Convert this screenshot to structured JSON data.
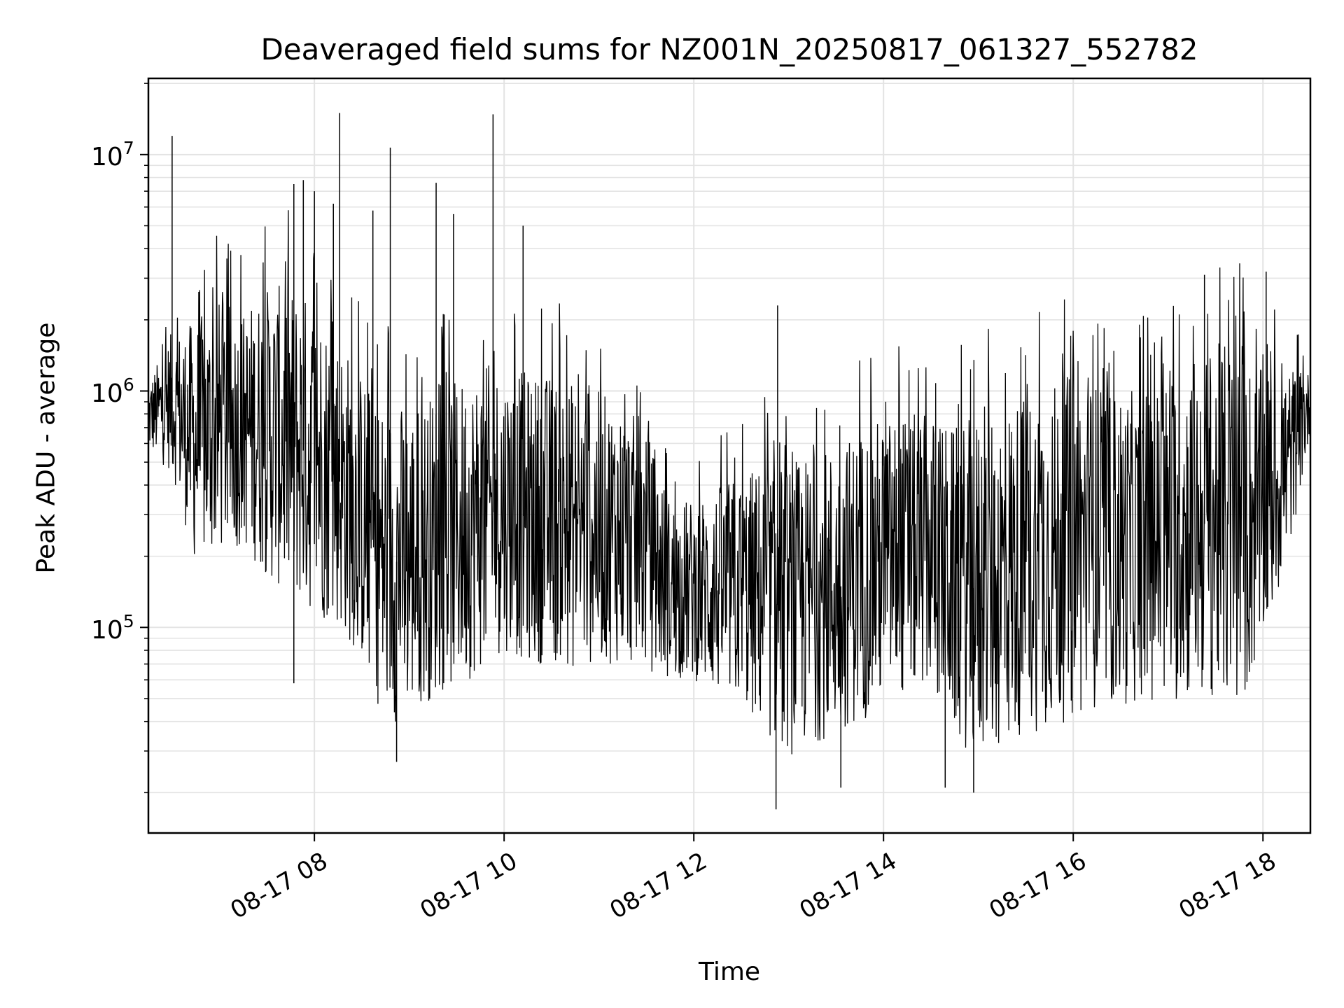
{
  "chart_data": {
    "type": "line",
    "title": "Deaveraged field sums for NZ001N_20250817_061327_552782",
    "xlabel": "Time",
    "ylabel": "Peak ADU - average",
    "yscale": "log",
    "xlim": [
      "2025-08-17 06:15",
      "2025-08-17 18:30"
    ],
    "ylim": [
      13500,
      21000000
    ],
    "grid": true,
    "series_color": "#000000",
    "x_ticks": [
      {
        "value": "2025-08-17 08:00",
        "label": "08-17 08"
      },
      {
        "value": "2025-08-17 10:00",
        "label": "08-17 10"
      },
      {
        "value": "2025-08-17 12:00",
        "label": "08-17 12"
      },
      {
        "value": "2025-08-17 14:00",
        "label": "08-17 14"
      },
      {
        "value": "2025-08-17 16:00",
        "label": "08-17 16"
      },
      {
        "value": "2025-08-17 18:00",
        "label": "08-17 18"
      }
    ],
    "y_ticks": [
      {
        "value": 100000,
        "base": "10",
        "exp": "5"
      },
      {
        "value": 1000000,
        "base": "10",
        "exp": "6"
      },
      {
        "value": 10000000,
        "base": "10",
        "exp": "7"
      }
    ],
    "series": [
      {
        "envelope": {
          "x": [
            "2025-08-17 06:15",
            "2025-08-17 06:30",
            "2025-08-17 06:45",
            "2025-08-17 07:00",
            "2025-08-17 07:15",
            "2025-08-17 07:30",
            "2025-08-17 07:45",
            "2025-08-17 08:00",
            "2025-08-17 08:15",
            "2025-08-17 08:30",
            "2025-08-17 08:45",
            "2025-08-17 09:00",
            "2025-08-17 09:15",
            "2025-08-17 09:30",
            "2025-08-17 09:45",
            "2025-08-17 10:00",
            "2025-08-17 10:15",
            "2025-08-17 10:30",
            "2025-08-17 10:45",
            "2025-08-17 11:00",
            "2025-08-17 11:15",
            "2025-08-17 11:30",
            "2025-08-17 11:45",
            "2025-08-17 12:00",
            "2025-08-17 12:15",
            "2025-08-17 12:30",
            "2025-08-17 12:45",
            "2025-08-17 13:00",
            "2025-08-17 13:15",
            "2025-08-17 13:30",
            "2025-08-17 13:45",
            "2025-08-17 14:00",
            "2025-08-17 14:15",
            "2025-08-17 14:30",
            "2025-08-17 14:45",
            "2025-08-17 15:00",
            "2025-08-17 15:15",
            "2025-08-17 15:30",
            "2025-08-17 15:45",
            "2025-08-17 16:00",
            "2025-08-17 16:15",
            "2025-08-17 16:30",
            "2025-08-17 16:45",
            "2025-08-17 17:00",
            "2025-08-17 17:15",
            "2025-08-17 17:30",
            "2025-08-17 17:45",
            "2025-08-17 18:00",
            "2025-08-17 18:15",
            "2025-08-17 18:30"
          ],
          "low": [
            550000,
            450000,
            180000,
            200000,
            220000,
            160000,
            130000,
            110000,
            100000,
            70000,
            38000,
            42000,
            50000,
            55000,
            65000,
            80000,
            70000,
            70000,
            65000,
            70000,
            70000,
            65000,
            60000,
            60000,
            50000,
            45000,
            35000,
            28000,
            32000,
            35000,
            40000,
            45000,
            50000,
            55000,
            35000,
            26000,
            30000,
            35000,
            38000,
            40000,
            45000,
            45000,
            50000,
            45000,
            50000,
            50000,
            40000,
            80000,
            180000,
            650000
          ],
          "high": [
            1100000,
            1800000,
            2000000,
            2500000,
            2200000,
            2800000,
            2800000,
            2500000,
            1800000,
            1200000,
            900000,
            900000,
            1000000,
            1100000,
            1300000,
            1300000,
            1200000,
            1200000,
            1100000,
            1000000,
            900000,
            700000,
            350000,
            350000,
            400000,
            450000,
            500000,
            500000,
            550000,
            600000,
            700000,
            800000,
            800000,
            800000,
            700000,
            800000,
            900000,
            1000000,
            1100000,
            1200000,
            1100000,
            1000000,
            1000000,
            1200000,
            1400000,
            1600000,
            1600000,
            1200000,
            1300000,
            1200000
          ]
        },
        "spikes": [
          {
            "x": "2025-08-17 06:30",
            "y": 12000000
          },
          {
            "x": "2025-08-17 07:47",
            "y": 7500000
          },
          {
            "x": "2025-08-17 07:53",
            "y": 7800000
          },
          {
            "x": "2025-08-17 08:00",
            "y": 7000000
          },
          {
            "x": "2025-08-17 08:16",
            "y": 15000000
          },
          {
            "x": "2025-08-17 08:12",
            "y": 6200000
          },
          {
            "x": "2025-08-17 08:37",
            "y": 5800000
          },
          {
            "x": "2025-08-17 08:48",
            "y": 10700000
          },
          {
            "x": "2025-08-17 09:17",
            "y": 7600000
          },
          {
            "x": "2025-08-17 09:28",
            "y": 5600000
          },
          {
            "x": "2025-08-17 09:53",
            "y": 14800000
          },
          {
            "x": "2025-08-17 10:12",
            "y": 5000000
          },
          {
            "x": "2025-08-17 12:53",
            "y": 2300000
          },
          {
            "x": "2025-08-17 17:23",
            "y": 3100000
          },
          {
            "x": "2025-08-17 18:02",
            "y": 3200000
          }
        ],
        "dips": [
          {
            "x": "2025-08-17 07:47",
            "y": 58000
          },
          {
            "x": "2025-08-17 08:52",
            "y": 27000
          },
          {
            "x": "2025-08-17 12:52",
            "y": 17000
          },
          {
            "x": "2025-08-17 13:33",
            "y": 21000
          },
          {
            "x": "2025-08-17 14:39",
            "y": 21000
          },
          {
            "x": "2025-08-17 14:57",
            "y": 20000
          }
        ]
      }
    ]
  }
}
